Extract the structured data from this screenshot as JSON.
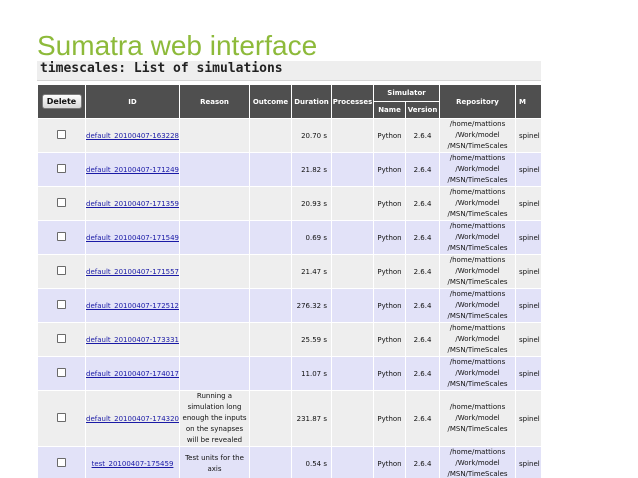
{
  "slide": {
    "title": "Sumatra web interface"
  },
  "page": {
    "heading": "timescales: List of simulations"
  },
  "table": {
    "delete_label": "Delete",
    "headers": {
      "id": "ID",
      "reason": "Reason",
      "outcome": "Outcome",
      "duration": "Duration",
      "processes": "Processes",
      "simulator": "Simulator",
      "name": "Name",
      "version": "Version",
      "repository": "Repository",
      "main": "M"
    },
    "rows": [
      {
        "id": "default_20100407-163228",
        "reason": "",
        "outcome": "",
        "duration": "20.70 s",
        "processes": "",
        "sim_name": "Python",
        "sim_version": "2.6.4",
        "repo_1": "/home/mattions",
        "repo_2": "/Work/model",
        "repo_3": "/MSN/TimeScales",
        "main": "spinel"
      },
      {
        "id": "default_20100407-171249",
        "reason": "",
        "outcome": "",
        "duration": "21.82 s",
        "processes": "",
        "sim_name": "Python",
        "sim_version": "2.6.4",
        "repo_1": "/home/mattions",
        "repo_2": "/Work/model",
        "repo_3": "/MSN/TimeScales",
        "main": "spinel"
      },
      {
        "id": "default_20100407-171359",
        "reason": "",
        "outcome": "",
        "duration": "20.93 s",
        "processes": "",
        "sim_name": "Python",
        "sim_version": "2.6.4",
        "repo_1": "/home/mattions",
        "repo_2": "/Work/model",
        "repo_3": "/MSN/TimeScales",
        "main": "spinel"
      },
      {
        "id": "default_20100407-171549",
        "reason": "",
        "outcome": "",
        "duration": "0.69 s",
        "processes": "",
        "sim_name": "Python",
        "sim_version": "2.6.4",
        "repo_1": "/home/mattions",
        "repo_2": "/Work/model",
        "repo_3": "/MSN/TimeScales",
        "main": "spinel"
      },
      {
        "id": "default_20100407-171557",
        "reason": "",
        "outcome": "",
        "duration": "21.47 s",
        "processes": "",
        "sim_name": "Python",
        "sim_version": "2.6.4",
        "repo_1": "/home/mattions",
        "repo_2": "/Work/model",
        "repo_3": "/MSN/TimeScales",
        "main": "spinel"
      },
      {
        "id": "default_20100407-172512",
        "reason": "",
        "outcome": "",
        "duration": "276.32 s",
        "processes": "",
        "sim_name": "Python",
        "sim_version": "2.6.4",
        "repo_1": "/home/mattions",
        "repo_2": "/Work/model",
        "repo_3": "/MSN/TimeScales",
        "main": "spinel"
      },
      {
        "id": "default_20100407-173331",
        "reason": "",
        "outcome": "",
        "duration": "25.59 s",
        "processes": "",
        "sim_name": "Python",
        "sim_version": "2.6.4",
        "repo_1": "/home/mattions",
        "repo_2": "/Work/model",
        "repo_3": "/MSN/TimeScales",
        "main": "spinel"
      },
      {
        "id": "default_20100407-174017",
        "reason": "",
        "outcome": "",
        "duration": "11.07 s",
        "processes": "",
        "sim_name": "Python",
        "sim_version": "2.6.4",
        "repo_1": "/home/mattions",
        "repo_2": "/Work/model",
        "repo_3": "/MSN/TimeScales",
        "main": "spinel"
      },
      {
        "id": "default_20100407-174320",
        "reason": "Running a simulation long enough the inputs on the synapses will be revealed",
        "outcome": "",
        "duration": "231.87 s",
        "processes": "",
        "sim_name": "Python",
        "sim_version": "2.6.4",
        "repo_1": "/home/mattions",
        "repo_2": "/Work/model",
        "repo_3": "/MSN/TimeScales",
        "main": "spinel"
      },
      {
        "id": "test_20100407-175459",
        "reason": "Test units for the axis",
        "outcome": "",
        "duration": "0.54 s",
        "processes": "",
        "sim_name": "Python",
        "sim_version": "2.6.4",
        "repo_1": "/home/mattions",
        "repo_2": "/Work/model",
        "repo_3": "/MSN/TimeScales",
        "main": "spinel"
      }
    ]
  }
}
